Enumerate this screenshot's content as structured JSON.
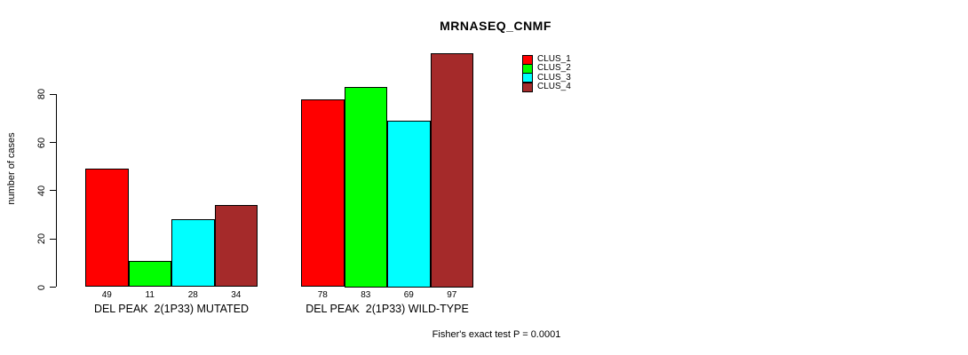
{
  "page": {
    "background": "#ffffff"
  },
  "chart_data": {
    "type": "bar",
    "title": "MRNASEQ_CNMF",
    "ylabel": "number of cases",
    "xlabel": "",
    "ylim": [
      0,
      80
    ],
    "yticks": [
      0,
      20,
      40,
      60,
      80
    ],
    "grid": false,
    "legend_position": "top-right",
    "categories": [
      "DEL PEAK  2(1P33) MUTATED",
      "DEL PEAK  2(1P33) WILD-TYPE"
    ],
    "series": [
      {
        "name": "CLUS_1",
        "color": "#ff0000",
        "values": [
          49,
          78
        ]
      },
      {
        "name": "CLUS_2",
        "color": "#00ff00",
        "values": [
          11,
          83
        ]
      },
      {
        "name": "CLUS_3",
        "color": "#00ffff",
        "values": [
          28,
          69
        ]
      },
      {
        "name": "CLUS_4",
        "color": "#a52a2a",
        "values": [
          34,
          97
        ]
      }
    ],
    "bar_value_labels": [
      [
        49,
        11,
        28,
        34
      ],
      [
        78,
        83,
        69,
        97
      ]
    ],
    "annotation": "Fisher's exact test P = 0.0001"
  }
}
